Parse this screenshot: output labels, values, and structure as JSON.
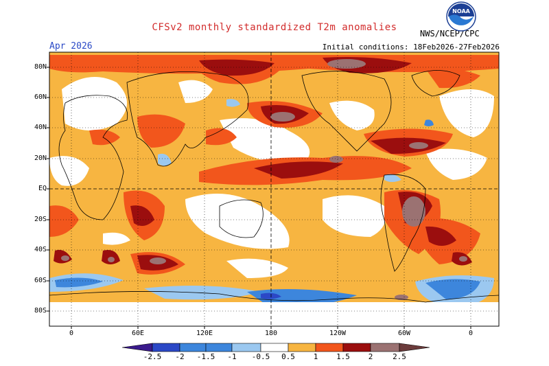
{
  "header": {
    "title": "CFSv2 monthly standardized T2m anomalies",
    "month": "Apr 2026",
    "initial_conditions": "Initial conditions: 18Feb2026-27Feb2026",
    "agency": "NWS/NCEP/CPC",
    "logo_text": "NOAA"
  },
  "axes": {
    "lat_labels": [
      "80N",
      "60N",
      "40N",
      "20N",
      "EQ",
      "20S",
      "40S",
      "60S",
      "80S"
    ],
    "lon_labels": [
      "0",
      "60E",
      "120E",
      "180",
      "120W",
      "60W",
      "0"
    ]
  },
  "colorbar": {
    "labels": [
      "-2.5",
      "-2",
      "-1.5",
      "-1",
      "-0.5",
      "0.5",
      "1",
      "1.5",
      "2",
      "2.5"
    ],
    "colors": [
      "#3a1a8c",
      "#2b48c6",
      "#3d86dc",
      "#9bc8f0",
      "#ffffff",
      "#f7b541",
      "#f2561c",
      "#9b0e0e",
      "#9b7272"
    ]
  },
  "colors": {
    "title": "#d22c2c",
    "month": "#2a49c6",
    "pos_weak": "#f7b541",
    "pos_mod": "#f2561c",
    "pos_strong": "#9b0e0e",
    "pos_extreme": "#9b7272",
    "neg_weak": "#9bc8f0",
    "neg_mod": "#3d86dc",
    "neg_strong": "#2b48c6",
    "neg_extreme": "#3a1a8c"
  }
}
